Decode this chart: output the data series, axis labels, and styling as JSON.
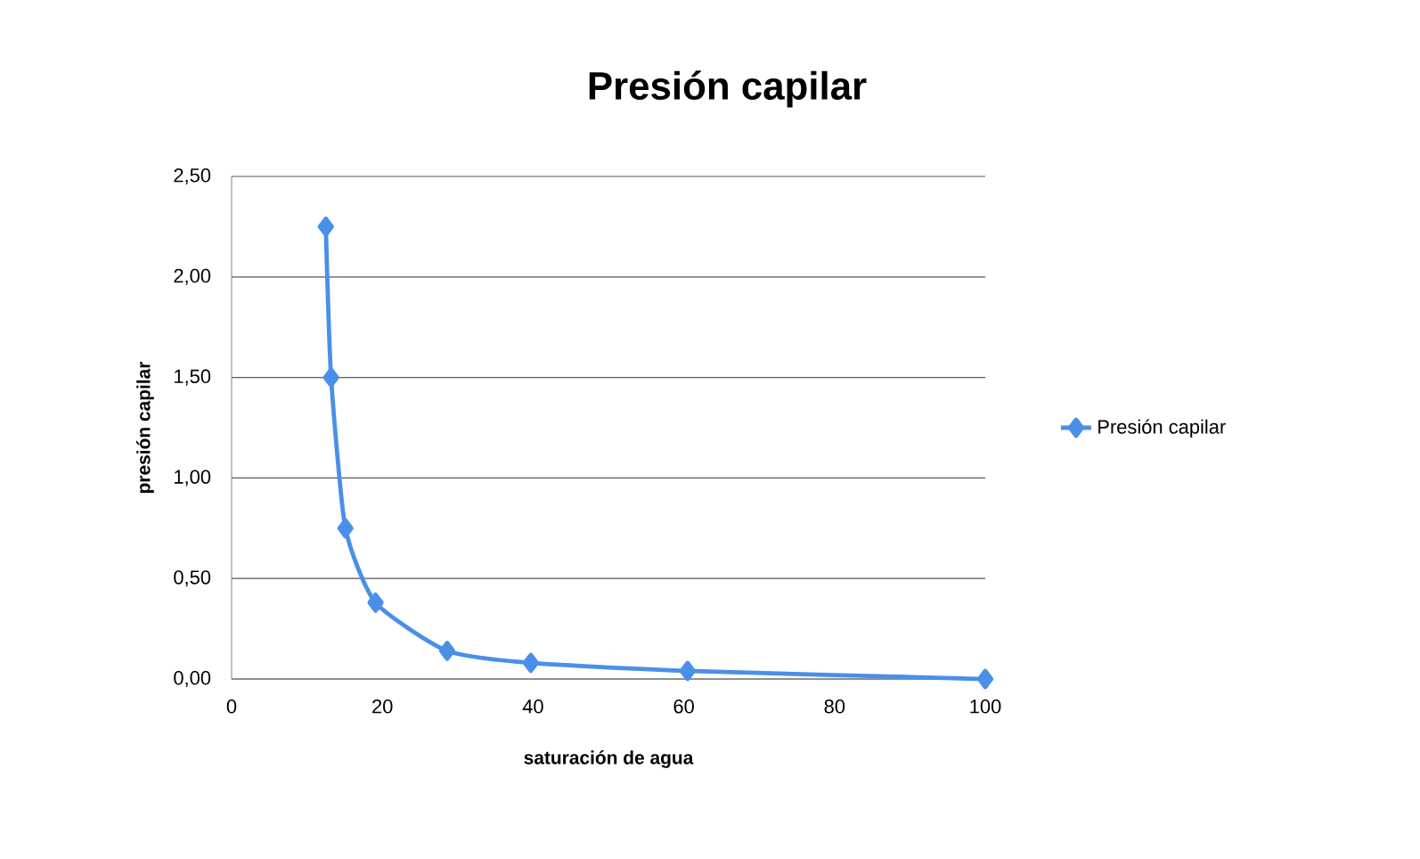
{
  "chart_data": {
    "type": "line",
    "title": "Presión capilar",
    "xlabel": "saturación de agua",
    "ylabel": "presión capilar",
    "series": [
      {
        "name": "Presión capilar",
        "color": "#4a8fe8",
        "x": [
          12.5,
          13.2,
          15.1,
          19.1,
          28.6,
          39.7,
          60.5,
          100
        ],
        "values": [
          2.25,
          1.5,
          0.75,
          0.38,
          0.14,
          0.08,
          0.04,
          0
        ]
      }
    ],
    "xlim": [
      0,
      100
    ],
    "xticks": [
      0,
      20,
      40,
      60,
      80,
      100
    ],
    "ylim": [
      0,
      2.5
    ],
    "yticks": [
      {
        "value": 0,
        "label": "0,00"
      },
      {
        "value": 0.5,
        "label": "0,50"
      },
      {
        "value": 1,
        "label": "1,00"
      },
      {
        "value": 1.5,
        "label": "1,50"
      },
      {
        "value": 2,
        "label": "2,00"
      },
      {
        "value": 2.5,
        "label": "2,50"
      }
    ],
    "grid": "y",
    "legend": "right",
    "marker": "diamond",
    "line_style": "solid"
  }
}
